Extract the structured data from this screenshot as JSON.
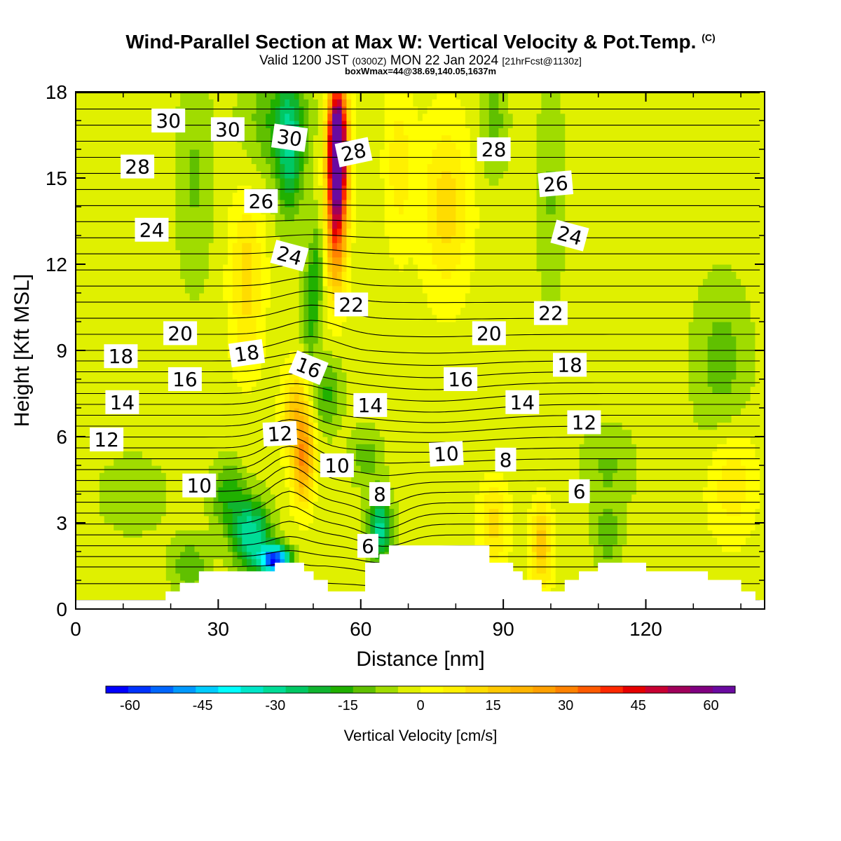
{
  "header": {
    "title": "Wind-Parallel Section at Max W: Vertical Velocity & Pot.Temp.",
    "copyright": "(C)",
    "valid_prefix": "Valid 1200 JST",
    "valid_utc": "(0300Z)",
    "valid_date": "MON 22 Jan 2024",
    "forecast": "[21hrFcst@1130z]",
    "box_info": "boxWmax=44@38.69,140.05,1637m"
  },
  "chart_data": {
    "type": "heatmap",
    "xlabel": "Distance [nm]",
    "ylabel": "Height [Kft MSL]",
    "xlim": [
      0,
      145
    ],
    "ylim": [
      0,
      18
    ],
    "x_ticks": [
      0,
      30,
      60,
      90,
      120
    ],
    "y_ticks": [
      0,
      3,
      6,
      9,
      12,
      15,
      18
    ],
    "colorbar": {
      "title": "Vertical Velocity [cm/s]",
      "ticks": [
        -60,
        -45,
        -30,
        -15,
        0,
        15,
        30,
        45,
        60
      ],
      "range": [
        -65,
        65
      ],
      "step": 5,
      "colors": [
        "#0000ff",
        "#0033ff",
        "#0066ff",
        "#0099ff",
        "#00ccff",
        "#00ffff",
        "#00e6c8",
        "#00dc96",
        "#00c864",
        "#10b430",
        "#20b000",
        "#60c000",
        "#a0dc00",
        "#e0f000",
        "#ffff00",
        "#fff000",
        "#ffdc00",
        "#ffc800",
        "#ffb400",
        "#ffa000",
        "#ff8200",
        "#ff5a00",
        "#ff2800",
        "#e60000",
        "#c80032",
        "#a0005a",
        "#800080",
        "#6a0aa0"
      ]
    },
    "terrain_kft": [
      [
        0,
        0.3
      ],
      [
        19,
        0.3
      ],
      [
        19,
        0.6
      ],
      [
        22,
        0.6
      ],
      [
        22,
        0.9
      ],
      [
        26,
        0.9
      ],
      [
        26,
        1.3
      ],
      [
        42,
        1.3
      ],
      [
        42,
        1.6
      ],
      [
        48,
        1.6
      ],
      [
        48,
        1.3
      ],
      [
        50,
        1.3
      ],
      [
        50,
        1.0
      ],
      [
        53,
        1.0
      ],
      [
        53,
        0.6
      ],
      [
        61,
        0.6
      ],
      [
        61,
        1.6
      ],
      [
        64,
        1.6
      ],
      [
        64,
        1.9
      ],
      [
        66,
        1.9
      ],
      [
        66,
        2.2
      ],
      [
        87,
        2.2
      ],
      [
        87,
        1.6
      ],
      [
        92,
        1.6
      ],
      [
        92,
        1.3
      ],
      [
        94,
        1.3
      ],
      [
        94,
        1.0
      ],
      [
        98,
        1.0
      ],
      [
        98,
        0.6
      ],
      [
        103,
        0.6
      ],
      [
        103,
        1.0
      ],
      [
        106,
        1.0
      ],
      [
        106,
        1.3
      ],
      [
        110,
        1.3
      ],
      [
        110,
        1.6
      ],
      [
        120,
        1.6
      ],
      [
        120,
        1.3
      ],
      [
        133,
        1.3
      ],
      [
        133,
        1.0
      ],
      [
        140,
        1.0
      ],
      [
        140,
        0.6
      ],
      [
        143,
        0.6
      ],
      [
        143,
        0.3
      ],
      [
        145,
        0.3
      ],
      [
        145,
        0
      ],
      [
        0,
        0
      ]
    ],
    "w_features": [
      {
        "x": 55,
        "y": 14.5,
        "value": 60,
        "sx": 2.2,
        "sy": 3.0,
        "tilt": 0.1
      },
      {
        "x": 55,
        "y": 16.5,
        "value": 55,
        "sx": 1.8,
        "sy": 1.8,
        "tilt": 0
      },
      {
        "x": 48,
        "y": 5.3,
        "value": 32,
        "sx": 2.2,
        "sy": 1.6,
        "tilt": 0.15
      },
      {
        "x": 46,
        "y": 7.0,
        "value": 18,
        "sx": 2.6,
        "sy": 1.6,
        "tilt": 0.3
      },
      {
        "x": 42,
        "y": 1.7,
        "value": -62,
        "sx": 3.0,
        "sy": 0.5,
        "tilt": 0
      },
      {
        "x": 37,
        "y": 2.6,
        "value": -32,
        "sx": 4.0,
        "sy": 1.2,
        "tilt": 0
      },
      {
        "x": 32,
        "y": 4.0,
        "value": -15,
        "sx": 3.5,
        "sy": 1.2,
        "tilt": 0
      },
      {
        "x": 64,
        "y": 2.8,
        "value": -30,
        "sx": 2.5,
        "sy": 1.2,
        "tilt": 0
      },
      {
        "x": 61,
        "y": 5.3,
        "value": -10,
        "sx": 3.5,
        "sy": 1.0,
        "tilt": 0
      },
      {
        "x": 45,
        "y": 16.0,
        "value": -22,
        "sx": 2.8,
        "sy": 2.5,
        "tilt": 0
      },
      {
        "x": 50,
        "y": 11.0,
        "value": -18,
        "sx": 2.0,
        "sy": 2.5,
        "tilt": 0.45
      },
      {
        "x": 53,
        "y": 7.5,
        "value": -14,
        "sx": 3.0,
        "sy": 1.3,
        "tilt": 0.2
      },
      {
        "x": 36,
        "y": 11.5,
        "value": 15,
        "sx": 3.5,
        "sy": 3.0,
        "tilt": 0
      },
      {
        "x": 78,
        "y": 14.0,
        "value": 15,
        "sx": 5.0,
        "sy": 3.0,
        "tilt": 0
      },
      {
        "x": 68,
        "y": 15.5,
        "value": 10,
        "sx": 3.0,
        "sy": 3.0,
        "tilt": 0
      },
      {
        "x": 98,
        "y": 2.2,
        "value": 20,
        "sx": 2.2,
        "sy": 1.5,
        "tilt": 0
      },
      {
        "x": 88,
        "y": 3.0,
        "value": 15,
        "sx": 3.0,
        "sy": 1.4,
        "tilt": 0
      },
      {
        "x": 138,
        "y": 4.5,
        "value": 12,
        "sx": 5.0,
        "sy": 2.0,
        "tilt": 0
      },
      {
        "x": 42,
        "y": 17.0,
        "value": -12,
        "sx": 7.0,
        "sy": 2.0,
        "tilt": 0
      },
      {
        "x": 25,
        "y": 15.0,
        "value": -8,
        "sx": 4.0,
        "sy": 4.0,
        "tilt": 0
      },
      {
        "x": 88,
        "y": 17.0,
        "value": -10,
        "sx": 3.0,
        "sy": 2.0,
        "tilt": 0
      },
      {
        "x": 100,
        "y": 14.5,
        "value": -8,
        "sx": 3.0,
        "sy": 4.0,
        "tilt": 0
      },
      {
        "x": 136,
        "y": 8.5,
        "value": -10,
        "sx": 6.0,
        "sy": 3.0,
        "tilt": 0
      },
      {
        "x": 112,
        "y": 5.0,
        "value": -8,
        "sx": 6.0,
        "sy": 1.5,
        "tilt": 0
      },
      {
        "x": 12,
        "y": 4.0,
        "value": -6,
        "sx": 8.0,
        "sy": 1.5,
        "tilt": 0
      },
      {
        "x": 24,
        "y": 1.5,
        "value": -12,
        "sx": 4.0,
        "sy": 1.0,
        "tilt": 0
      },
      {
        "x": 112,
        "y": 2.5,
        "value": -10,
        "sx": 3.0,
        "sy": 1.2,
        "tilt": 0
      }
    ],
    "contour_labels": [
      {
        "text": "30",
        "x": 19.5,
        "y": 17.0,
        "rot": 0
      },
      {
        "text": "30",
        "x": 32,
        "y": 16.7,
        "rot": 0
      },
      {
        "text": "30",
        "x": 45,
        "y": 16.4,
        "rot": 8
      },
      {
        "text": "28",
        "x": 58.5,
        "y": 15.9,
        "rot": -12
      },
      {
        "text": "28",
        "x": 88,
        "y": 16.0,
        "rot": 0
      },
      {
        "text": "28",
        "x": 13,
        "y": 15.4,
        "rot": 0
      },
      {
        "text": "26",
        "x": 39,
        "y": 14.2,
        "rot": 0
      },
      {
        "text": "26",
        "x": 101,
        "y": 14.8,
        "rot": -5
      },
      {
        "text": "24",
        "x": 16,
        "y": 13.2,
        "rot": 0
      },
      {
        "text": "24",
        "x": 45,
        "y": 12.3,
        "rot": 15
      },
      {
        "text": "24",
        "x": 104,
        "y": 13.0,
        "rot": 15
      },
      {
        "text": "22",
        "x": 58,
        "y": 10.6,
        "rot": 0
      },
      {
        "text": "22",
        "x": 100,
        "y": 10.3,
        "rot": 0
      },
      {
        "text": "20",
        "x": 22,
        "y": 9.6,
        "rot": 0
      },
      {
        "text": "20",
        "x": 87,
        "y": 9.6,
        "rot": 0
      },
      {
        "text": "18",
        "x": 9.5,
        "y": 8.8,
        "rot": 0
      },
      {
        "text": "18",
        "x": 36,
        "y": 8.9,
        "rot": -8
      },
      {
        "text": "18",
        "x": 104,
        "y": 8.5,
        "rot": 0
      },
      {
        "text": "16",
        "x": 23,
        "y": 8.0,
        "rot": 0
      },
      {
        "text": "16",
        "x": 49,
        "y": 8.4,
        "rot": 22
      },
      {
        "text": "16",
        "x": 81,
        "y": 8.0,
        "rot": 0
      },
      {
        "text": "14",
        "x": 9.8,
        "y": 7.2,
        "rot": 0
      },
      {
        "text": "14",
        "x": 62,
        "y": 7.1,
        "rot": 0
      },
      {
        "text": "14",
        "x": 94,
        "y": 7.2,
        "rot": 0
      },
      {
        "text": "12",
        "x": 6.5,
        "y": 5.9,
        "rot": 0
      },
      {
        "text": "12",
        "x": 43,
        "y": 6.1,
        "rot": -3
      },
      {
        "text": "12",
        "x": 107,
        "y": 6.5,
        "rot": 0
      },
      {
        "text": "10",
        "x": 26,
        "y": 4.3,
        "rot": 0
      },
      {
        "text": "10",
        "x": 55,
        "y": 5.0,
        "rot": 0
      },
      {
        "text": "10",
        "x": 78,
        "y": 5.4,
        "rot": -3
      },
      {
        "text": "8",
        "x": 90.5,
        "y": 5.2,
        "rot": 0
      },
      {
        "text": "8",
        "x": 64,
        "y": 4.0,
        "rot": 0
      },
      {
        "text": "6",
        "x": 106,
        "y": 4.1,
        "rot": 0
      },
      {
        "text": "6",
        "x": 61.5,
        "y": 2.2,
        "rot": 0
      }
    ]
  }
}
